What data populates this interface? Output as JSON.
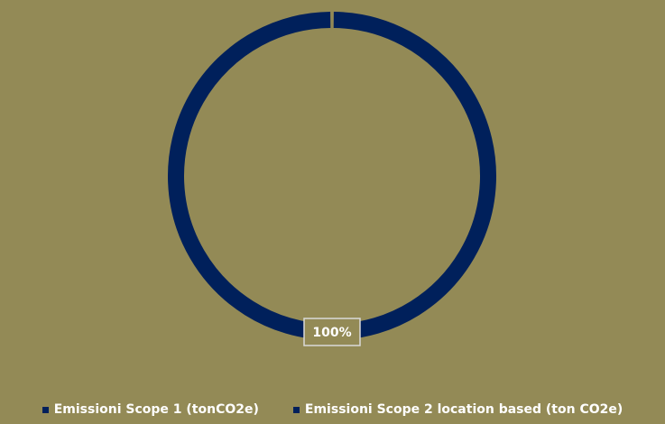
{
  "colors": {
    "background": "#938a56",
    "series_navy": "#00205b",
    "text": "#ffffff",
    "label_border": "#d9d9d9"
  },
  "chart_data": {
    "type": "pie",
    "style": "doughnut",
    "categories": [
      "Emissioni Scope 1 (tonCO2e)",
      "Emissioni Scope 2 location based (ton CO2e)"
    ],
    "values": [
      0,
      100
    ],
    "data_labels": [
      "",
      "100%"
    ],
    "legend_position": "bottom"
  },
  "legend": [
    {
      "label": "Emissioni Scope 1 (tonCO2e)",
      "color": "#00205b"
    },
    {
      "label": "Emissioni Scope 2 location based (ton CO2e)",
      "color": "#00205b"
    }
  ]
}
